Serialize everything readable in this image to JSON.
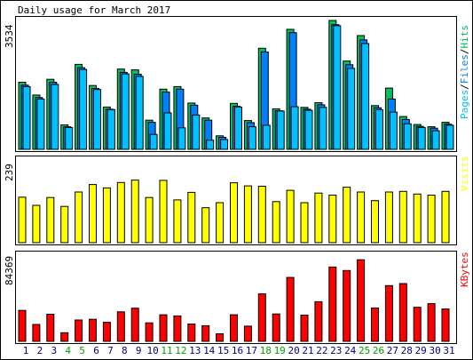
{
  "chart_data": {
    "type": "bar",
    "title": "Daily usage for March 2017",
    "categories": [
      "1",
      "2",
      "3",
      "4",
      "5",
      "6",
      "7",
      "8",
      "9",
      "10",
      "11",
      "12",
      "13",
      "14",
      "15",
      "16",
      "17",
      "18",
      "19",
      "20",
      "21",
      "22",
      "23",
      "24",
      "25",
      "26",
      "27",
      "28",
      "29",
      "30",
      "31"
    ],
    "weekend_days": [
      "4",
      "5",
      "11",
      "12",
      "18",
      "19",
      "25",
      "26"
    ],
    "panels": [
      {
        "name": "pages-files-hits",
        "ymax": 3534,
        "ymax_label": "3534",
        "legend": [
          {
            "text": "Pages",
            "color": "#00c0ff"
          },
          {
            "text": "/",
            "color": "#000000"
          },
          {
            "text": "Files",
            "color": "#0080ff"
          },
          {
            "text": "/",
            "color": "#000000"
          },
          {
            "text": "Hits",
            "color": "#00c060"
          }
        ],
        "series": [
          {
            "name": "Hits",
            "color": "#00c060",
            "values": [
              1840,
              1490,
              1920,
              670,
              2330,
              1750,
              1160,
              2200,
              2180,
              800,
              1650,
              1720,
              1270,
              860,
              370,
              1260,
              790,
              2770,
              1110,
              3290,
              1150,
              1280,
              3534,
              2420,
              3120,
              1200,
              1680,
              900,
              680,
              620,
              740
            ]
          },
          {
            "name": "Files",
            "color": "#0080ff",
            "values": [
              1760,
              1420,
              1840,
              620,
              2240,
              1670,
              1100,
              2110,
              2060,
              740,
              1570,
              1650,
              1210,
              800,
              330,
              1180,
              730,
              2670,
              1060,
              3200,
              1100,
              1220,
              3420,
              2320,
              3000,
              1140,
              1380,
              820,
              630,
              580,
              690
            ]
          },
          {
            "name": "Pages",
            "color": "#00c0ff",
            "values": [
              1720,
              1380,
              1780,
              600,
              2190,
              1640,
              1090,
              2070,
              2000,
              410,
              1000,
              590,
              940,
              250,
              270,
              1160,
              620,
              660,
              1050,
              1170,
              1070,
              1150,
              3390,
              2220,
              2900,
              1090,
              1020,
              700,
              600,
              510,
              660
            ]
          }
        ]
      },
      {
        "name": "visits",
        "ymax": 239,
        "ymax_label": "239",
        "legend": [
          {
            "text": "Visits",
            "color": "#ffff00"
          }
        ],
        "series": [
          {
            "name": "Visits",
            "color": "#ffff00",
            "values": [
              133,
              109,
              132,
              106,
              148,
              170,
              160,
              176,
              183,
              132,
              182,
              125,
              147,
              102,
              117,
              175,
              166,
              165,
              120,
              153,
              117,
              145,
              139,
              162,
              148,
              123,
              148,
              150,
              142,
              139,
              150
            ]
          }
        ]
      },
      {
        "name": "kbytes",
        "ymax": 84369,
        "ymax_label": "84369",
        "legend": [
          {
            "text": "KBytes",
            "color": "#ff0000"
          }
        ],
        "series": [
          {
            "name": "KBytes",
            "color": "#ff0000",
            "values": [
              30600,
              16700,
              26800,
              8500,
              21100,
              21800,
              18800,
              29200,
              32800,
              18300,
              26300,
              25100,
              17100,
              15500,
              7500,
              26300,
              15000,
              46900,
              27100,
              63200,
              25900,
              39200,
              73500,
              70000,
              80700,
              33000,
              55100,
              57100,
              33700,
              37300,
              32000
            ]
          }
        ]
      }
    ]
  }
}
